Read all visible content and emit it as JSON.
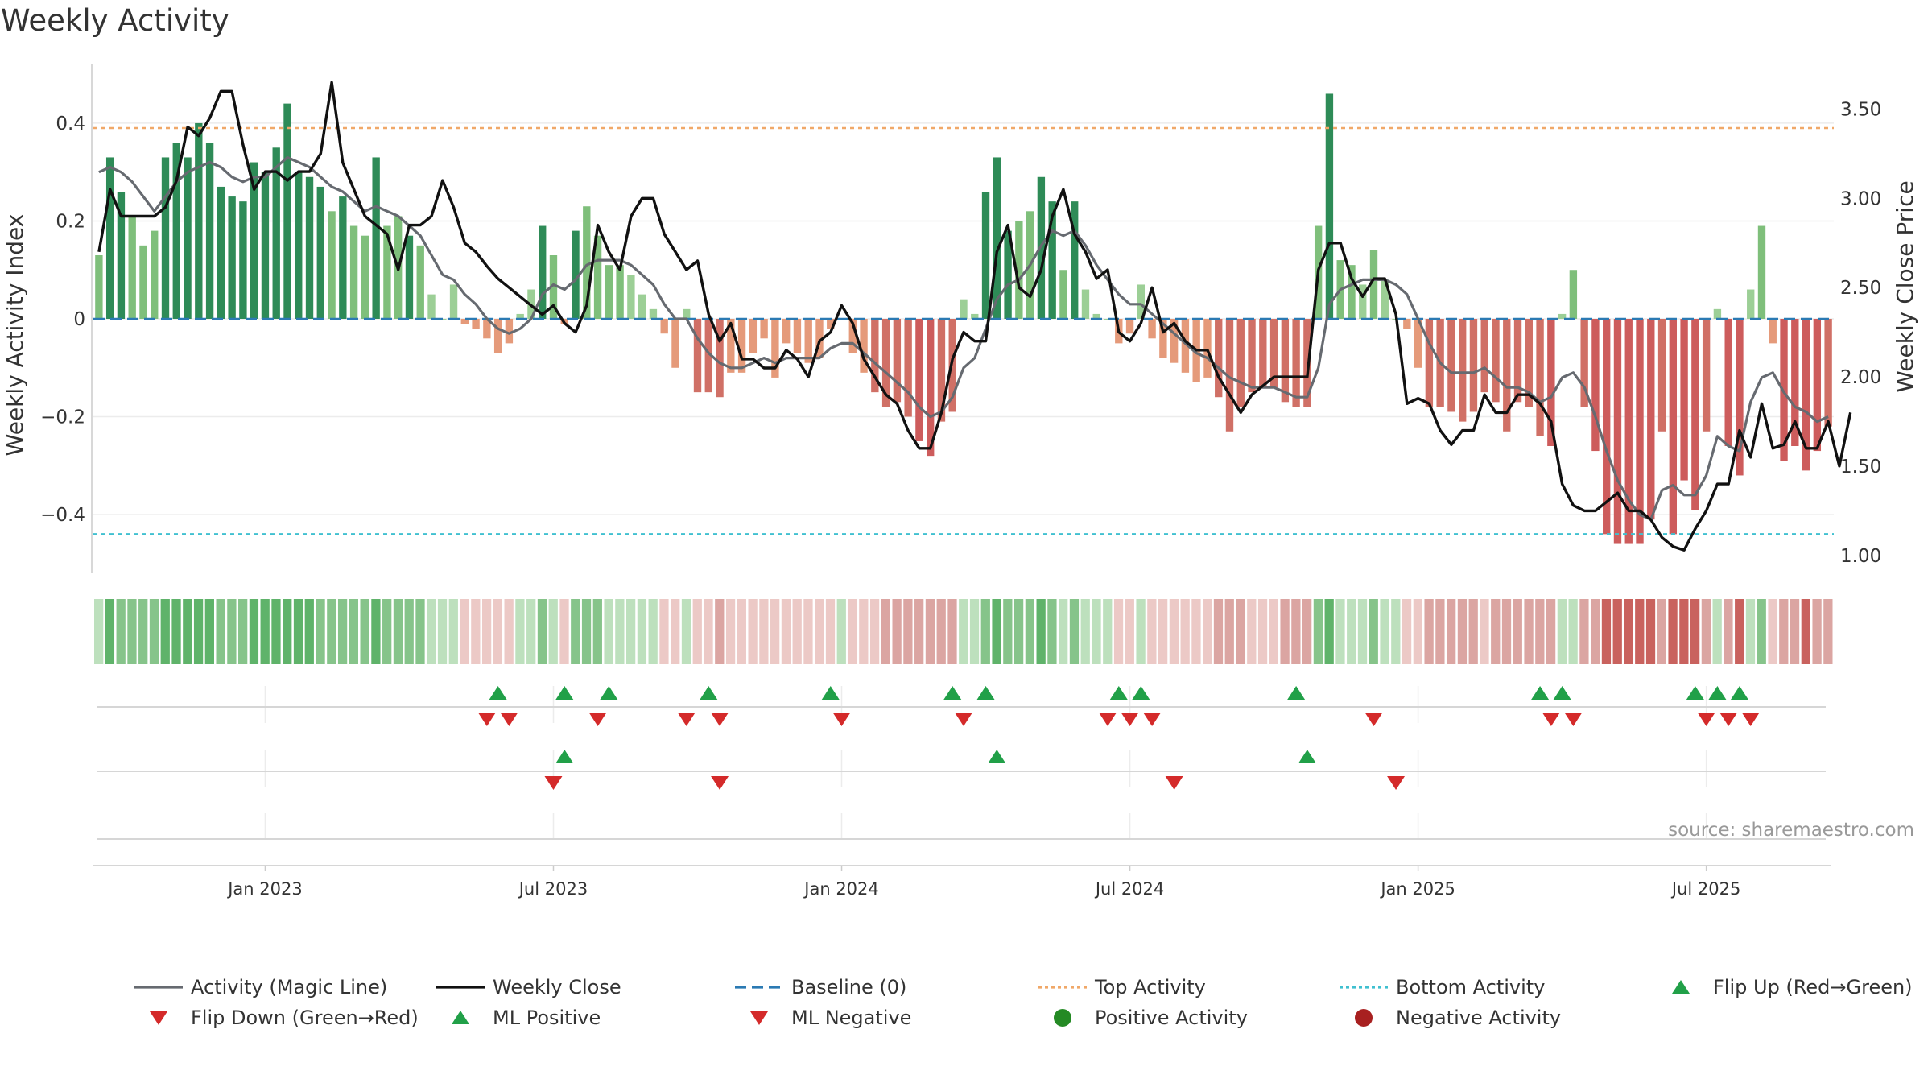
{
  "chart_data": {
    "type": "bar",
    "title": "Weekly Activity",
    "ylabel": "Weekly Activity Index",
    "y2label": "Weekly Close Price",
    "ylim": [
      -0.52,
      0.52
    ],
    "y2lim": [
      0.9,
      3.75
    ],
    "yticks": [
      {
        "v": 0.4,
        "label": "0.4"
      },
      {
        "v": 0.2,
        "label": "0.2"
      },
      {
        "v": 0,
        "label": "0"
      },
      {
        "v": -0.2,
        "label": "−0.2"
      },
      {
        "v": -0.4,
        "label": "−0.4"
      }
    ],
    "y2ticks": [
      {
        "v": 3.5,
        "label": "3.50"
      },
      {
        "v": 3.0,
        "label": "3.00"
      },
      {
        "v": 2.5,
        "label": "2.50"
      },
      {
        "v": 2.0,
        "label": "2.00"
      },
      {
        "v": 1.5,
        "label": "1.50"
      },
      {
        "v": 1.0,
        "label": "1.00"
      }
    ],
    "xtick_labels": [
      {
        "week": 15,
        "label": "Jan 2023"
      },
      {
        "week": 41,
        "label": "Jul 2023"
      },
      {
        "week": 67,
        "label": "Jan 2024"
      },
      {
        "week": 93,
        "label": "Jul 2024"
      },
      {
        "week": 119,
        "label": "Jan 2025"
      },
      {
        "week": 145,
        "label": "Jul 2025"
      }
    ],
    "n_weeks": 157,
    "top_activity": 0.39,
    "bottom_activity": -0.44,
    "baseline": 0,
    "source": "source: sharemaestro.com",
    "activity": [
      0.13,
      0.33,
      0.26,
      0.21,
      0.15,
      0.18,
      0.33,
      0.36,
      0.33,
      0.4,
      0.36,
      0.27,
      0.25,
      0.24,
      0.32,
      0.3,
      0.35,
      0.44,
      0.3,
      0.29,
      0.27,
      0.22,
      0.25,
      0.19,
      0.17,
      0.33,
      0.19,
      0.21,
      0.17,
      0.15,
      0.05,
      0.0,
      0.07,
      -0.01,
      -0.02,
      -0.04,
      -0.07,
      -0.05,
      0.01,
      0.06,
      0.19,
      0.13,
      -0.01,
      0.18,
      0.23,
      0.17,
      0.11,
      0.11,
      0.09,
      0.05,
      0.02,
      -0.03,
      -0.1,
      0.02,
      -0.15,
      -0.15,
      -0.16,
      -0.11,
      -0.11,
      -0.07,
      -0.04,
      -0.12,
      -0.05,
      -0.07,
      -0.09,
      -0.08,
      -0.02,
      0.0,
      -0.07,
      -0.11,
      -0.15,
      -0.18,
      -0.17,
      -0.2,
      -0.25,
      -0.28,
      -0.21,
      -0.19,
      0.04,
      0.01,
      0.26,
      0.33,
      0.18,
      0.2,
      0.22,
      0.29,
      0.24,
      0.1,
      0.24,
      0.06,
      0.01,
      0.0,
      -0.05,
      -0.03,
      0.07,
      -0.04,
      -0.08,
      -0.09,
      -0.11,
      -0.13,
      -0.12,
      -0.16,
      -0.23,
      -0.18,
      -0.15,
      -0.14,
      -0.14,
      -0.17,
      -0.18,
      -0.18,
      0.19,
      0.46,
      0.12,
      0.11,
      0.07,
      0.14,
      0.08,
      0.0,
      -0.02,
      -0.1,
      -0.18,
      -0.18,
      -0.19,
      -0.21,
      -0.19,
      -0.15,
      -0.17,
      -0.23,
      -0.17,
      -0.18,
      -0.24,
      -0.26,
      0.01,
      0.1,
      -0.18,
      -0.27,
      -0.44,
      -0.46,
      -0.46,
      -0.46,
      -0.41,
      -0.23,
      -0.44,
      -0.33,
      -0.39,
      -0.23,
      0.02,
      -0.26,
      -0.32,
      0.06,
      0.19,
      -0.05,
      -0.29,
      -0.26,
      -0.31,
      -0.27,
      -0.22
    ],
    "magic_line": [
      0.3,
      0.31,
      0.3,
      0.28,
      0.25,
      0.22,
      0.25,
      0.28,
      0.3,
      0.31,
      0.32,
      0.31,
      0.29,
      0.28,
      0.29,
      0.29,
      0.31,
      0.33,
      0.32,
      0.31,
      0.29,
      0.27,
      0.26,
      0.24,
      0.22,
      0.23,
      0.22,
      0.21,
      0.19,
      0.17,
      0.13,
      0.09,
      0.08,
      0.05,
      0.03,
      0.0,
      -0.02,
      -0.03,
      -0.02,
      0.0,
      0.05,
      0.07,
      0.06,
      0.08,
      0.11,
      0.12,
      0.12,
      0.12,
      0.11,
      0.09,
      0.07,
      0.03,
      0.0,
      0.0,
      -0.04,
      -0.07,
      -0.09,
      -0.1,
      -0.1,
      -0.09,
      -0.08,
      -0.09,
      -0.08,
      -0.08,
      -0.08,
      -0.08,
      -0.06,
      -0.05,
      -0.05,
      -0.07,
      -0.09,
      -0.11,
      -0.13,
      -0.15,
      -0.18,
      -0.2,
      -0.19,
      -0.16,
      -0.1,
      -0.08,
      -0.02,
      0.04,
      0.07,
      0.08,
      0.11,
      0.15,
      0.18,
      0.17,
      0.18,
      0.15,
      0.11,
      0.08,
      0.05,
      0.03,
      0.03,
      0.01,
      -0.01,
      -0.03,
      -0.05,
      -0.07,
      -0.08,
      -0.1,
      -0.12,
      -0.13,
      -0.14,
      -0.14,
      -0.14,
      -0.15,
      -0.16,
      -0.16,
      -0.1,
      0.03,
      0.06,
      0.07,
      0.08,
      0.08,
      0.08,
      0.07,
      0.05,
      0.0,
      -0.05,
      -0.09,
      -0.11,
      -0.11,
      -0.11,
      -0.1,
      -0.12,
      -0.14,
      -0.14,
      -0.15,
      -0.17,
      -0.16,
      -0.12,
      -0.11,
      -0.14,
      -0.2,
      -0.27,
      -0.33,
      -0.37,
      -0.4,
      -0.41,
      -0.35,
      -0.34,
      -0.36,
      -0.36,
      -0.32,
      -0.24,
      -0.26,
      -0.27,
      -0.17,
      -0.12,
      -0.11,
      -0.15,
      -0.18,
      -0.19,
      -0.21,
      -0.2
    ],
    "weekly_close": [
      2.7,
      3.05,
      2.9,
      2.9,
      2.9,
      2.9,
      2.95,
      3.1,
      3.4,
      3.35,
      3.45,
      3.6,
      3.6,
      3.3,
      3.05,
      3.15,
      3.15,
      3.1,
      3.15,
      3.15,
      3.25,
      3.65,
      3.2,
      3.05,
      2.9,
      2.85,
      2.8,
      2.6,
      2.85,
      2.85,
      2.9,
      3.1,
      2.95,
      2.75,
      2.7,
      2.62,
      2.55,
      2.5,
      2.45,
      2.4,
      2.35,
      2.4,
      2.3,
      2.25,
      2.4,
      2.85,
      2.7,
      2.6,
      2.9,
      3.0,
      3.0,
      2.8,
      2.7,
      2.6,
      2.65,
      2.35,
      2.2,
      2.3,
      2.1,
      2.1,
      2.05,
      2.05,
      2.15,
      2.1,
      2.0,
      2.2,
      2.25,
      2.4,
      2.3,
      2.1,
      2.0,
      1.9,
      1.85,
      1.7,
      1.6,
      1.6,
      1.8,
      2.1,
      2.25,
      2.2,
      2.2,
      2.7,
      2.85,
      2.5,
      2.45,
      2.6,
      2.9,
      3.05,
      2.8,
      2.7,
      2.55,
      2.6,
      2.25,
      2.2,
      2.3,
      2.5,
      2.25,
      2.3,
      2.2,
      2.15,
      2.15,
      2.0,
      1.9,
      1.8,
      1.9,
      1.95,
      2.0,
      2.0,
      2.0,
      2.0,
      2.6,
      2.75,
      2.75,
      2.55,
      2.45,
      2.55,
      2.55,
      2.35,
      1.85,
      1.88,
      1.85,
      1.7,
      1.62,
      1.7,
      1.7,
      1.9,
      1.8,
      1.8,
      1.9,
      1.9,
      1.85,
      1.75,
      1.4,
      1.28,
      1.25,
      1.25,
      1.3,
      1.35,
      1.25,
      1.25,
      1.2,
      1.1,
      1.05,
      1.03,
      1.15,
      1.25,
      1.4,
      1.4,
      1.7,
      1.55,
      1.85,
      1.6,
      1.62,
      1.75,
      1.6,
      1.6,
      1.75,
      1.5,
      1.8
    ],
    "ml_positive": [
      36,
      42,
      46,
      55,
      66,
      77,
      80,
      92,
      94,
      108,
      130,
      132,
      144,
      146,
      148
    ],
    "flip_down": [
      35,
      37,
      45,
      53,
      56,
      67,
      78,
      91,
      93,
      95,
      115,
      131,
      133,
      145,
      147,
      149
    ],
    "flip_up": [
      42,
      81,
      109
    ],
    "ml_negative": [
      41,
      56,
      97,
      117
    ],
    "legend": [
      {
        "kind": "line",
        "color": "#666a70",
        "dash": "",
        "label": "Activity (Magic Line)"
      },
      {
        "kind": "line",
        "color": "#111111",
        "dash": "",
        "label": "Weekly Close"
      },
      {
        "kind": "line",
        "color": "#2b7ab3",
        "dash": "14 7",
        "label": "Baseline (0)"
      },
      {
        "kind": "line",
        "color": "#f0a868",
        "dash": "4 4",
        "label": "Top Activity"
      },
      {
        "kind": "line",
        "color": "#40c0d0",
        "dash": "4 4",
        "label": "Bottom Activity"
      },
      {
        "kind": "up",
        "color": "#21a048",
        "label": "Flip Up (Red→Green)"
      },
      {
        "kind": "down",
        "color": "#d42a2a",
        "label": "Flip Down (Green→Red)"
      },
      {
        "kind": "up",
        "color": "#21a048",
        "label": "ML Positive"
      },
      {
        "kind": "down",
        "color": "#d42a2a",
        "label": "ML Negative"
      },
      {
        "kind": "dot",
        "color": "#248a24",
        "label": "Positive Activity"
      },
      {
        "kind": "dot",
        "color": "#a82020",
        "label": "Negative Activity"
      }
    ]
  }
}
